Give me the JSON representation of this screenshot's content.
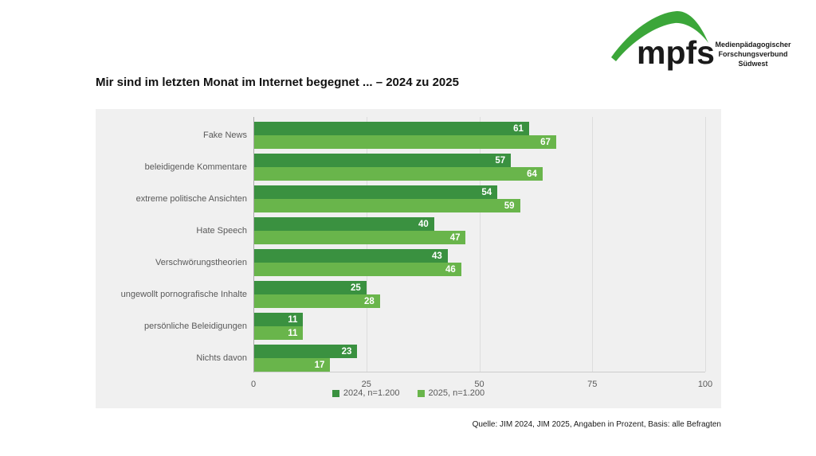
{
  "logo": {
    "brand": "mpfs",
    "org_lines": [
      "Medienpädagogischer",
      "Forschungsverbund",
      "Südwest"
    ],
    "green": "#3ba639"
  },
  "chart_data": {
    "type": "bar",
    "orientation": "horizontal",
    "title": "Mir sind im letzten Monat im Internet begegnet ... – 2024 zu 2025",
    "categories": [
      "Fake News",
      "beleidigende Kommentare",
      "extreme politische Ansichten",
      "Hate Speech",
      "Verschwörungstheorien",
      "ungewollt pornografische Inhalte",
      "persönliche Beleidigungen",
      "Nichts davon"
    ],
    "series": [
      {
        "name": "2024, n=1.200",
        "color": "#3a9140",
        "values": [
          61,
          57,
          54,
          40,
          43,
          25,
          11,
          23
        ]
      },
      {
        "name": "2025, n=1.200",
        "color": "#69b54b",
        "values": [
          67,
          64,
          59,
          47,
          46,
          28,
          11,
          17
        ]
      }
    ],
    "xlim": [
      0,
      100
    ],
    "xticks": [
      0,
      25,
      50,
      75,
      100
    ],
    "grid": true,
    "legend_position": "bottom",
    "value_labels": "inside-end",
    "plot_background": "#f0f0f0",
    "unit": "Prozent"
  },
  "source": "Quelle: JIM 2024, JIM 2025, Angaben in Prozent, Basis: alle Befragten"
}
